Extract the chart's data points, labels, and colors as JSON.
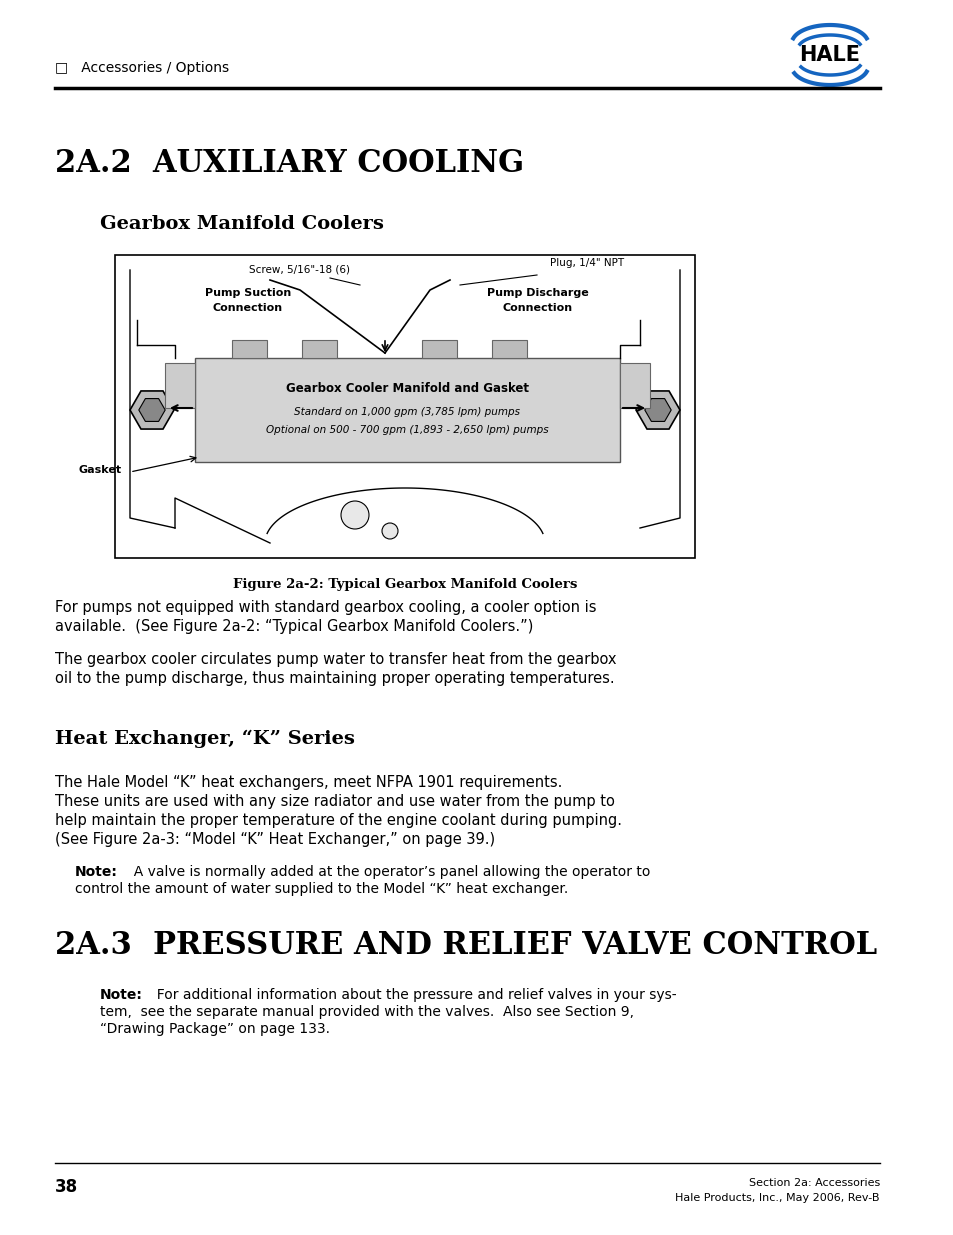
{
  "page_bg": "#ffffff",
  "header_text": "□   Accessories / Options",
  "section_title": "2A.2  AUXILIARY COOLING",
  "subsection1_title": "Gearbox Manifold Coolers",
  "figure_caption": "Figure 2a-2: Typical Gearbox Manifold Coolers",
  "para1_line1": "For pumps not equipped with standard gearbox cooling, a cooler option is",
  "para1_line2": "available.  (See Figure 2a-2: “Typical Gearbox Manifold Coolers.”)",
  "para2_line1": "The gearbox cooler circulates pump water to transfer heat from the gearbox",
  "para2_line2": "oil to the pump discharge, thus maintaining proper operating temperatures.",
  "subsection2_title": "Heat Exchanger, “K” Series",
  "para3_line1": "The Hale Model “K” heat exchangers, meet NFPA 1901 requirements.",
  "para3_line2": "These units are used with any size radiator and use water from the pump to",
  "para3_line3": "help maintain the proper temperature of the engine coolant during pumping.",
  "para3_line4": "(See Figure 2a-3: “Model “K” Heat Exchanger,” on page 39.)",
  "note1_label": "Note:",
  "note1_line1": "  A valve is normally added at the operator’s panel allowing the operator to",
  "note1_line2": "control the amount of water supplied to the Model “K” heat exchanger.",
  "section2_title": "2A.3  PRESSURE AND RELIEF VALVE CONTROL",
  "note2_label": "Note:",
  "note2_line1": "  For additional information about the pressure and relief valves in your sys-",
  "note2_line2": "tem,  see the separate manual provided with the valves.  Also see Section 9,",
  "note2_line3": "“Drawing Package” on page 133.",
  "footer_page": "38",
  "footer_right1": "Section 2a: Accessories",
  "footer_right2": "Hale Products, Inc., May 2006, Rev-B",
  "manifold_title": "Gearbox Cooler Manifold and Gasket",
  "manifold_line1": "Standard on 1,000 gpm (3,785 lpm) pumps",
  "manifold_line2": "Optional on 500 - 700 gpm (1,893 - 2,650 lpm) pumps",
  "screw_label": "Screw, 5/16\"-18 (6)",
  "plug_label": "Plug, 1/4\" NPT",
  "suction_label": "Pump Suction\nConnection",
  "discharge_label": "Pump Discharge\nConnection",
  "gasket_label": "Gasket"
}
